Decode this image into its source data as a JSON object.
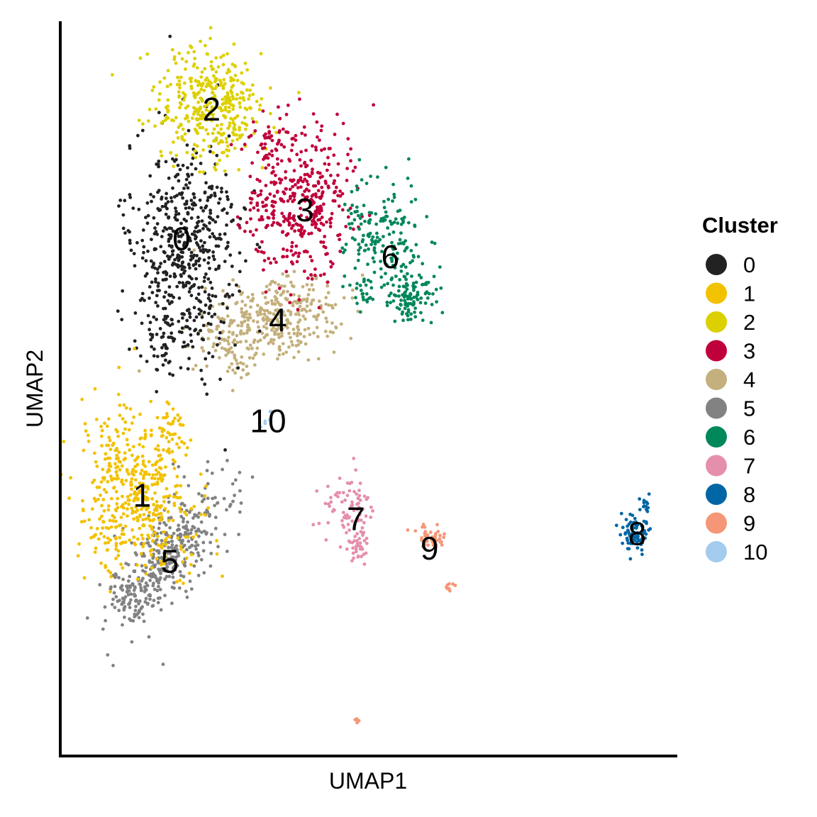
{
  "chart_data": {
    "type": "scatter",
    "title": "",
    "xlabel": "UMAP1",
    "ylabel": "UMAP2",
    "xlim": [
      0,
      100
    ],
    "ylim": [
      0,
      100
    ],
    "grid": false,
    "ticks": false,
    "legend": {
      "title": "Cluster",
      "placement": "right"
    },
    "clusters": [
      {
        "id": "0",
        "label": "0",
        "color": "#222222",
        "center": [
          19.5,
          70.5
        ]
      },
      {
        "id": "1",
        "label": "1",
        "color": "#F2C100",
        "center": [
          13.1,
          35.4
        ]
      },
      {
        "id": "2",
        "label": "2",
        "color": "#DDD000",
        "center": [
          24.4,
          88.2
        ]
      },
      {
        "id": "3",
        "label": "3",
        "color": "#C0003A",
        "center": [
          39.6,
          74.4
        ]
      },
      {
        "id": "4",
        "label": "4",
        "color": "#C4B07C",
        "center": [
          35.2,
          59.4
        ]
      },
      {
        "id": "5",
        "label": "5",
        "color": "#828282",
        "center": [
          17.6,
          26.4
        ]
      },
      {
        "id": "6",
        "label": "6",
        "color": "#00875A",
        "center": [
          53.5,
          68.0
        ]
      },
      {
        "id": "7",
        "label": "7",
        "color": "#E58FAD",
        "center": [
          47.9,
          32.2
        ]
      },
      {
        "id": "8",
        "label": "8",
        "color": "#0066A5",
        "center": [
          93.7,
          30.2
        ]
      },
      {
        "id": "9",
        "label": "9",
        "color": "#F59777",
        "center": [
          59.9,
          28.2
        ]
      },
      {
        "id": "10",
        "label": "10",
        "color": "#A3CBEE",
        "center": [
          33.6,
          45.6
        ]
      }
    ]
  }
}
